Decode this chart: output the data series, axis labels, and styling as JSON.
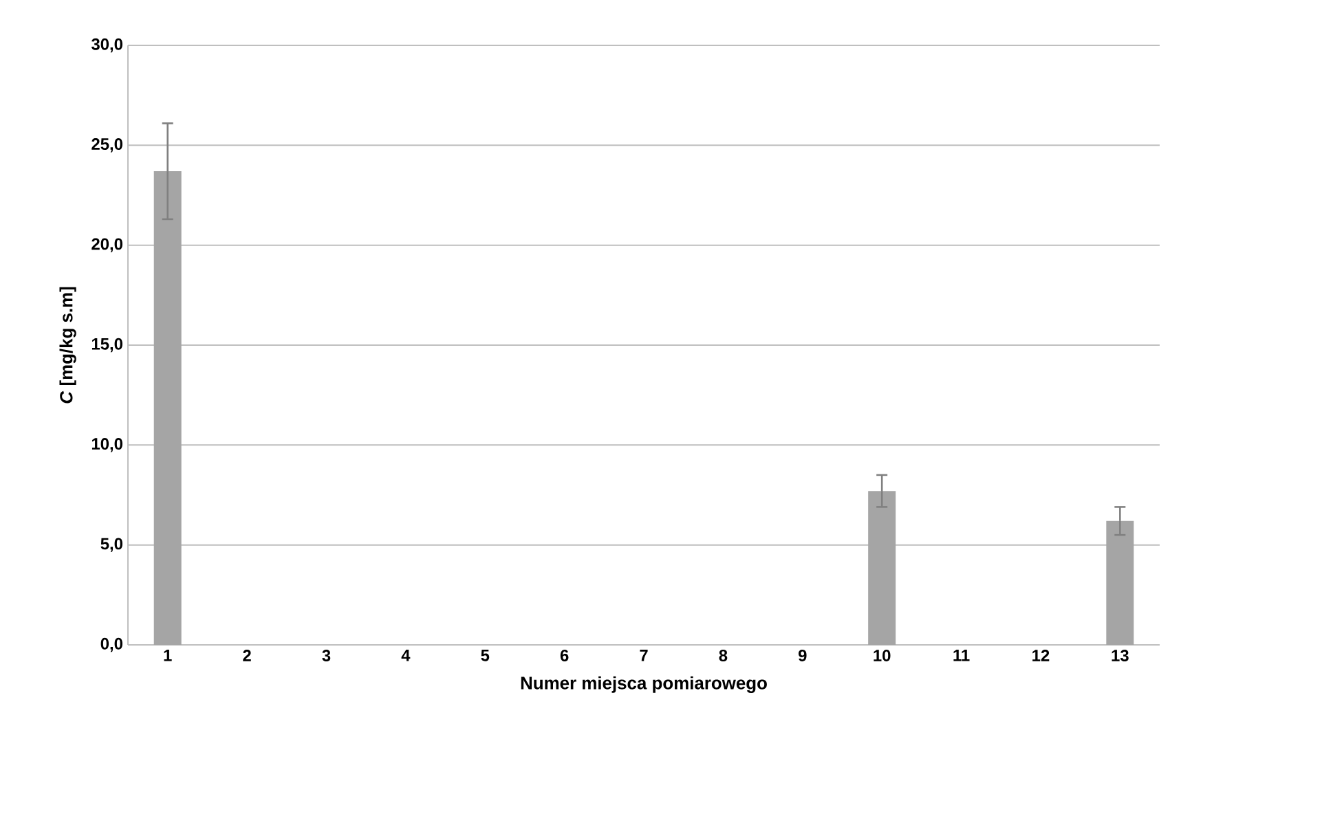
{
  "chart_data": {
    "type": "bar",
    "xlabel": "Numer miejsca pomiarowego",
    "ylabel": "*C* [mg/kg s.m]",
    "categories": [
      "1",
      "2",
      "3",
      "4",
      "5",
      "6",
      "7",
      "8",
      "9",
      "10",
      "11",
      "12",
      "13"
    ],
    "values": [
      23.7,
      0,
      0,
      0,
      0,
      0,
      0,
      0,
      0,
      7.7,
      0,
      0,
      6.2
    ],
    "errors": [
      2.4,
      null,
      null,
      null,
      null,
      null,
      null,
      null,
      null,
      0.8,
      null,
      null,
      0.7
    ],
    "color": "#a5a5a5",
    "ylim": [
      0,
      30
    ],
    "yticks": [
      {
        "value": 0,
        "label": "0,0"
      },
      {
        "value": 5,
        "label": "5,0"
      },
      {
        "value": 10,
        "label": "10,0"
      },
      {
        "value": 15,
        "label": "15,0"
      },
      {
        "value": 20,
        "label": "20,0"
      },
      {
        "value": 25,
        "label": "25,0"
      },
      {
        "value": 30,
        "label": "30,0"
      }
    ],
    "grid": "y"
  }
}
